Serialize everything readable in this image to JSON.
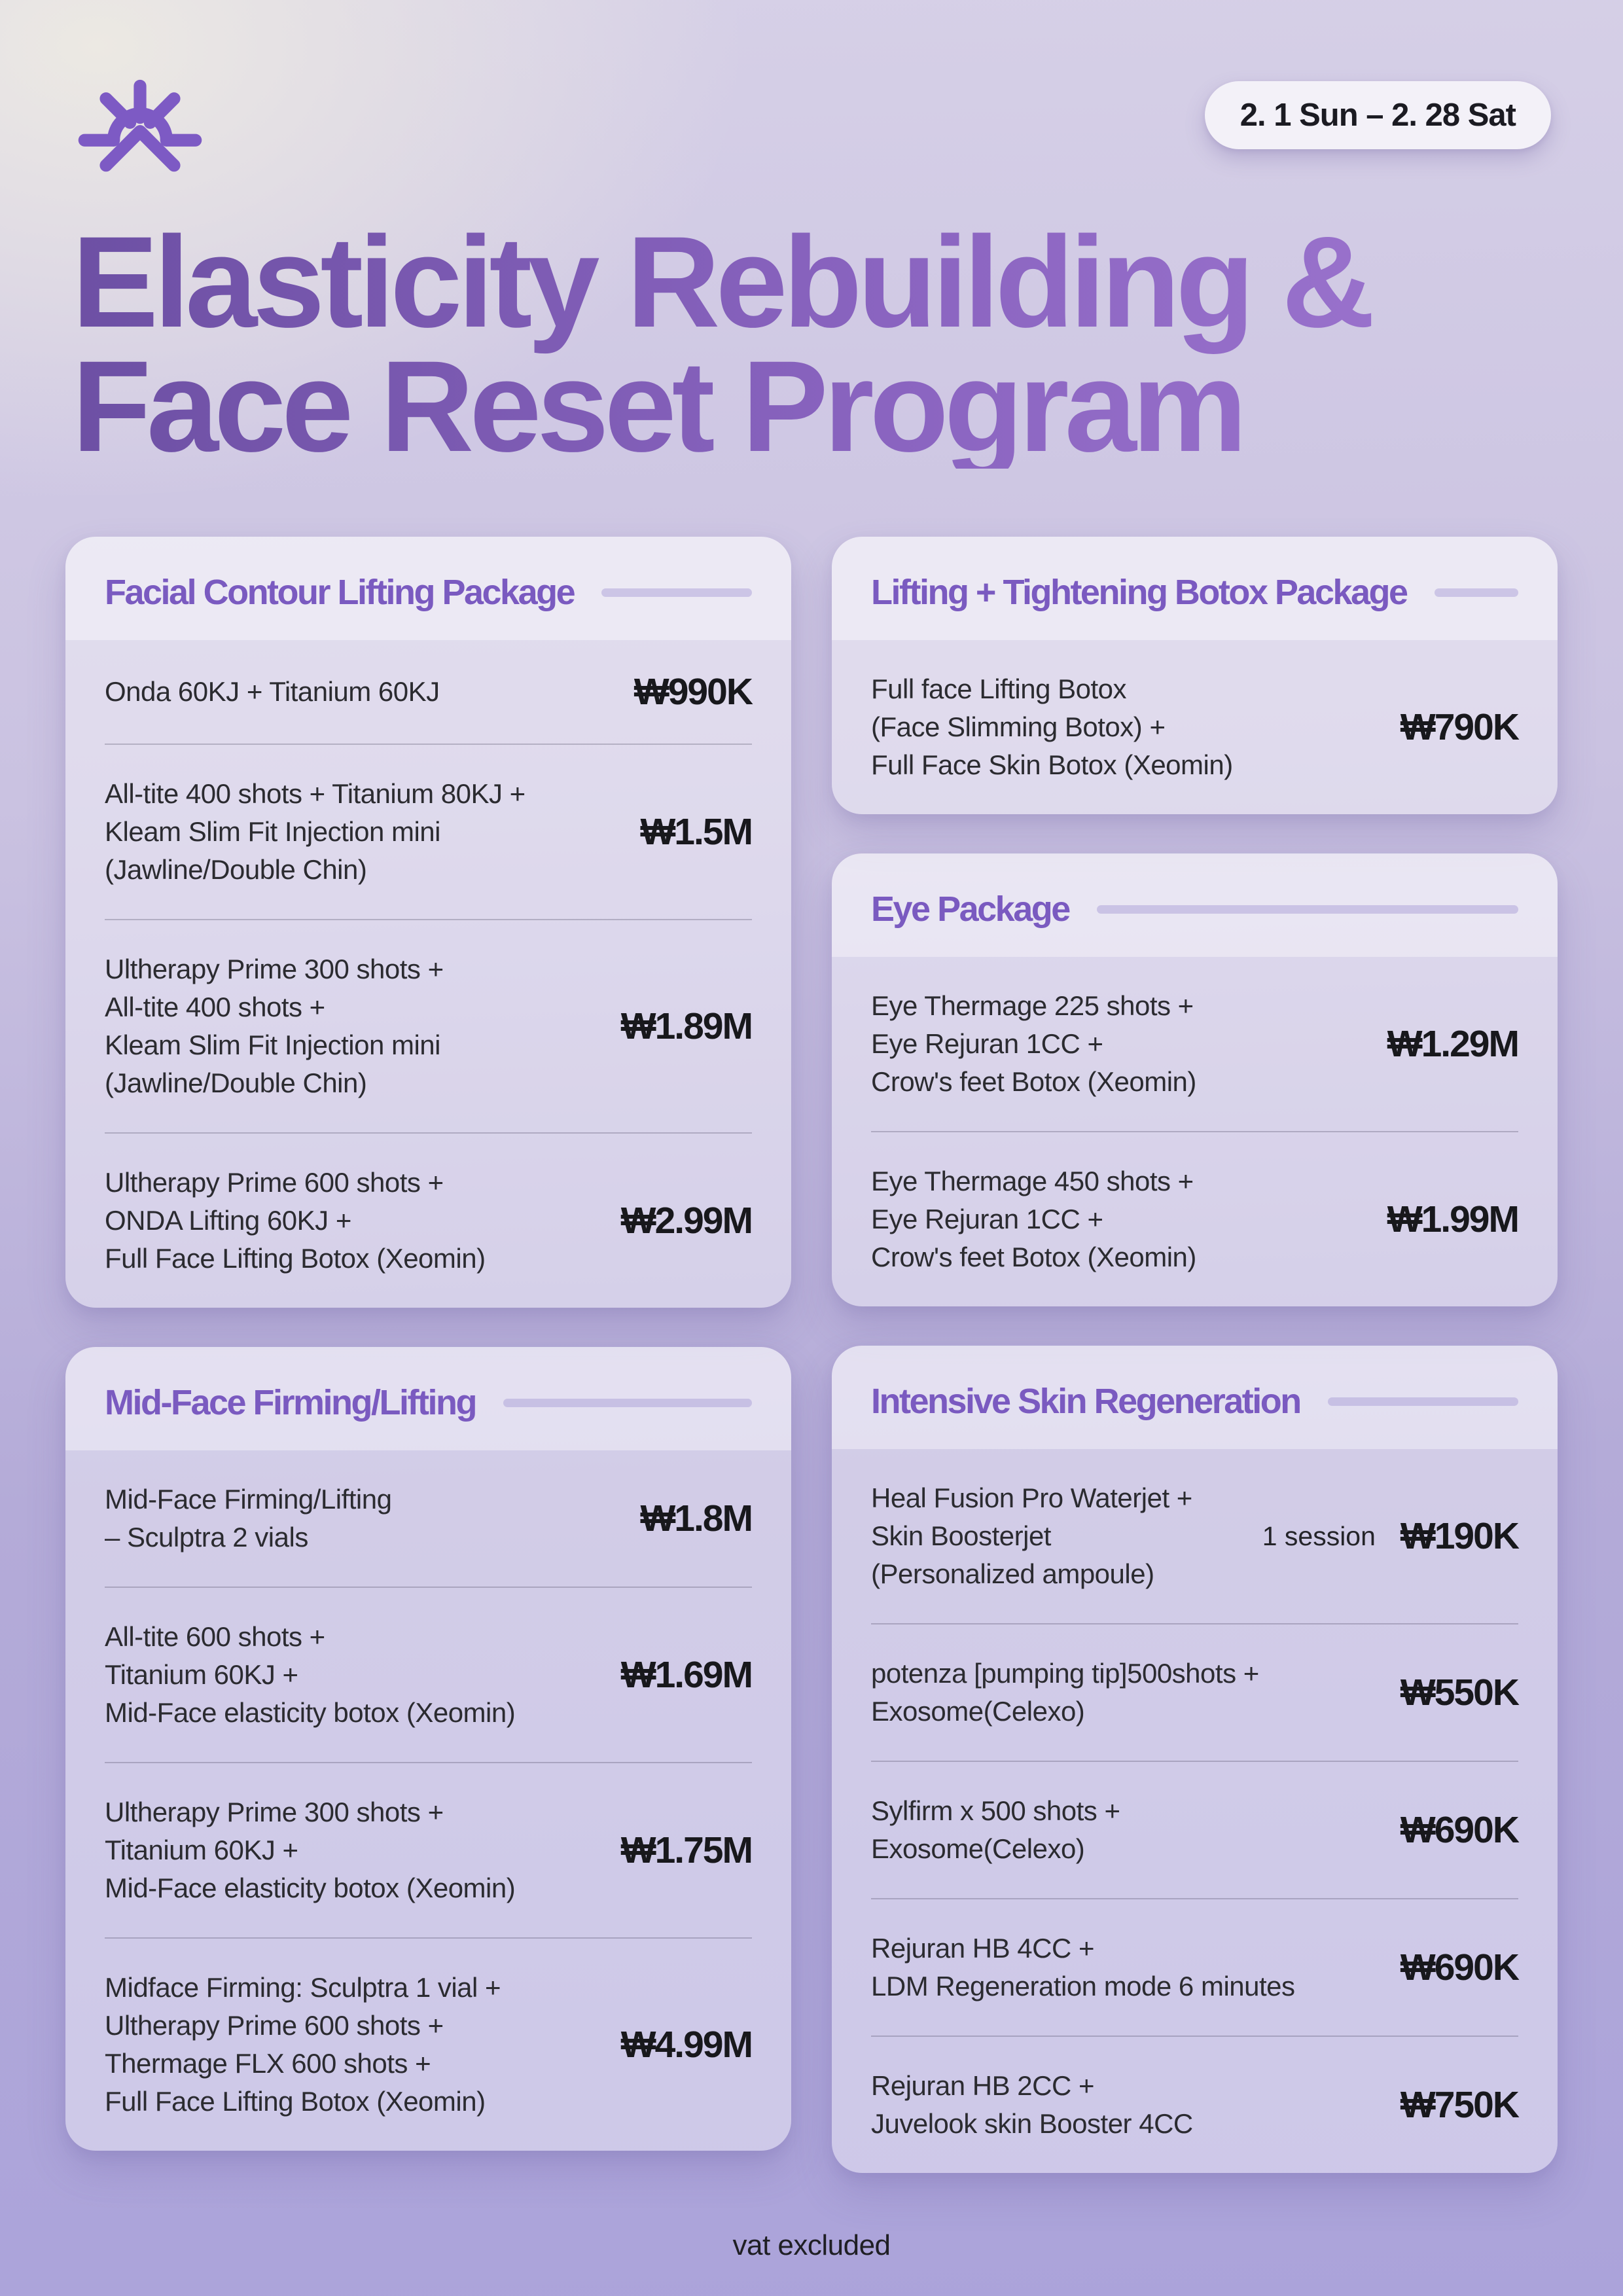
{
  "page": {
    "date_badge": "2. 1 Sun – 2. 28 Sat",
    "title_line1": "Elasticity Rebuilding &",
    "title_line2": "Face Reset Program",
    "footer_note": "vat excluded"
  },
  "colors": {
    "logo_purple": "#7d5ac4",
    "card_title_purple": "#7a5ac0",
    "title_gradient_start": "#6d50a4",
    "title_gradient_end": "#9e76d0",
    "page_background_top": "#eae8e3",
    "page_background_bottom": "#aba3da",
    "item_text": "#2b2b30",
    "price_text": "#18181c"
  },
  "layout": {
    "left": [
      "facial-contour",
      "mid-face"
    ],
    "right": [
      "botox-package",
      "eye-package",
      "skin-regen"
    ]
  },
  "cards": [
    {
      "id": "facial-contour",
      "title": "Facial Contour Lifting Package",
      "items": [
        {
          "name": "Onda 60KJ + Titanium 60KJ",
          "price": "₩990K"
        },
        {
          "name": "All-tite 400 shots + Titanium 80KJ +\nKleam Slim Fit Injection mini\n(Jawline/Double Chin)",
          "price": "₩1.5M"
        },
        {
          "name": "Ultherapy Prime 300 shots +\nAll-tite 400 shots +\nKleam Slim Fit Injection mini\n(Jawline/Double Chin)",
          "price": "₩1.89M"
        },
        {
          "name": "Ultherapy Prime 600 shots +\nONDA Lifting 60KJ +\nFull Face Lifting Botox (Xeomin)",
          "price": "₩2.99M"
        }
      ]
    },
    {
      "id": "mid-face",
      "title": "Mid-Face Firming/Lifting",
      "items": [
        {
          "name": "Mid-Face Firming/Lifting\n– Sculptra 2 vials",
          "price": "₩1.8M"
        },
        {
          "name": "All-tite 600 shots +\nTitanium 60KJ +\nMid-Face elasticity botox (Xeomin)",
          "price": "₩1.69M"
        },
        {
          "name": "Ultherapy Prime 300 shots +\nTitanium 60KJ +\nMid-Face elasticity botox (Xeomin)",
          "price": "₩1.75M"
        },
        {
          "name": "Midface Firming: Sculptra 1 vial +\nUltherapy Prime 600 shots +\nThermage FLX 600 shots +\nFull Face Lifting Botox (Xeomin)",
          "price": "₩4.99M"
        }
      ]
    },
    {
      "id": "botox-package",
      "title": "Lifting + Tightening Botox Package",
      "items": [
        {
          "name": "Full face Lifting Botox\n(Face Slimming Botox) +\nFull Face Skin Botox (Xeomin)",
          "price": "₩790K"
        }
      ]
    },
    {
      "id": "eye-package",
      "title": "Eye Package",
      "items": [
        {
          "name": "Eye Thermage 225 shots +\nEye Rejuran 1CC +\nCrow's feet Botox (Xeomin)",
          "price": "₩1.29M"
        },
        {
          "name": "Eye Thermage 450 shots +\nEye Rejuran 1CC +\nCrow's feet Botox (Xeomin)",
          "price": "₩1.99M"
        }
      ]
    },
    {
      "id": "skin-regen",
      "title": "Intensive Skin Regeneration",
      "items": [
        {
          "name": "Heal Fusion Pro Waterjet +\nSkin Boosterjet\n(Personalized ampoule)",
          "note": "1 session",
          "price": "₩190K"
        },
        {
          "name": "potenza [pumping tip]500shots +\nExosome(Celexo)",
          "price": "₩550K"
        },
        {
          "name": "Sylfirm x 500 shots +\nExosome(Celexo)",
          "price": "₩690K"
        },
        {
          "name": "Rejuran HB 4CC +\nLDM Regeneration mode 6 minutes",
          "price": "₩690K"
        },
        {
          "name": "Rejuran HB 2CC +\nJuvelook skin Booster 4CC",
          "price": "₩750K"
        }
      ]
    }
  ]
}
